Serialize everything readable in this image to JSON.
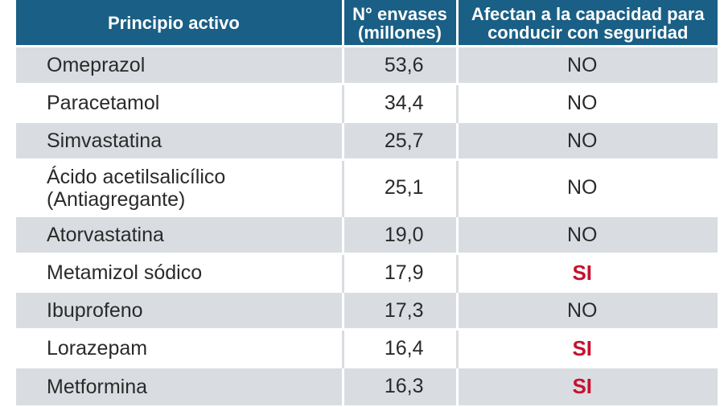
{
  "header": {
    "col1": "Principio activo",
    "col2_line1": "N° envases",
    "col2_line2": "(millones)",
    "col3_line1": "Afectan a la capacidad para",
    "col3_line2": "conducir con seguridad"
  },
  "rows": [
    {
      "name_line1": "Omeprazol",
      "name_line2": "",
      "envases": "53,6",
      "afecta": "NO"
    },
    {
      "name_line1": "Paracetamol",
      "name_line2": "",
      "envases": "34,4",
      "afecta": "NO"
    },
    {
      "name_line1": "Simvastatina",
      "name_line2": "",
      "envases": "25,7",
      "afecta": "NO"
    },
    {
      "name_line1": "Ácido acetilsalicílico",
      "name_line2": "(Antiagregante)",
      "envases": "25,1",
      "afecta": "NO"
    },
    {
      "name_line1": "Atorvastatina",
      "name_line2": "",
      "envases": "19,0",
      "afecta": "NO"
    },
    {
      "name_line1": "Metamizol sódico",
      "name_line2": "",
      "envases": "17,9",
      "afecta": "SI"
    },
    {
      "name_line1": "Ibuprofeno",
      "name_line2": "",
      "envases": "17,3",
      "afecta": "NO"
    },
    {
      "name_line1": "Lorazepam",
      "name_line2": "",
      "envases": "16,4",
      "afecta": "SI"
    },
    {
      "name_line1": "Metformina",
      "name_line2": "",
      "envases": "16,3",
      "afecta": "SI"
    }
  ],
  "colors": {
    "header_bg": "#1a5f85",
    "row_alt_bg": "#d9dde1",
    "si_color": "#c8102e"
  }
}
